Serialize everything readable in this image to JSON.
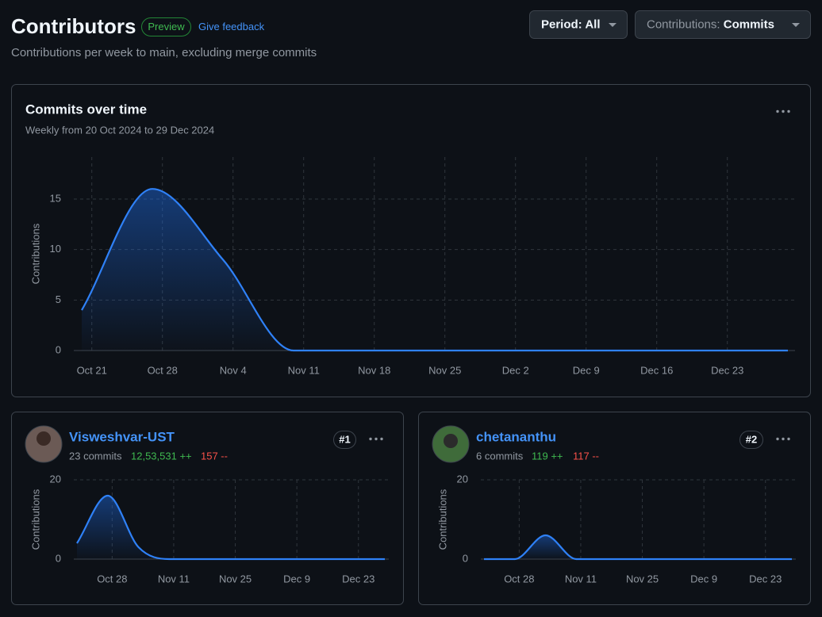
{
  "header": {
    "title": "Contributors",
    "badge": "Preview",
    "feedback": "Give feedback",
    "subtitle": "Contributions per week to main, excluding merge commits",
    "period_label": "Period:",
    "period_value": "All",
    "contributions_label": "Contributions:",
    "contributions_value": "Commits"
  },
  "contributors": [
    {
      "name": "Visweshvar-UST",
      "commits": "23 commits",
      "additions": "12,53,531 ++",
      "deletions": "157 --",
      "rank": "#1"
    },
    {
      "name": "chetananthu",
      "commits": "6 commits",
      "additions": "119 ++",
      "deletions": "117 --",
      "rank": "#2"
    }
  ],
  "chart_data": [
    {
      "type": "area",
      "title": "Commits over time",
      "subtitle": "Weekly from 20 Oct 2024 to 29 Dec 2024",
      "y_label": "Contributions",
      "x": [
        "2024-10-20",
        "2024-10-27",
        "2024-11-03",
        "2024-11-10",
        "2024-11-17",
        "2024-11-24",
        "2024-12-01",
        "2024-12-08",
        "2024-12-15",
        "2024-12-22",
        "2024-12-29"
      ],
      "values": [
        4,
        16,
        9,
        0,
        0,
        0,
        0,
        0,
        0,
        0,
        0
      ],
      "color": "#2f81f7",
      "xlim": [
        "2024-10-20",
        "2024-12-29"
      ],
      "xticks": [
        {
          "value": "2024-10-21",
          "label": "Oct 21"
        },
        {
          "value": "2024-10-28",
          "label": "Oct 28"
        },
        {
          "value": "2024-11-04",
          "label": "Nov 4"
        },
        {
          "value": "2024-11-11",
          "label": "Nov 11"
        },
        {
          "value": "2024-11-18",
          "label": "Nov 18"
        },
        {
          "value": "2024-11-25",
          "label": "Nov 25"
        },
        {
          "value": "2024-12-02",
          "label": "Dec 2"
        },
        {
          "value": "2024-12-09",
          "label": "Dec 9"
        },
        {
          "value": "2024-12-16",
          "label": "Dec 16"
        },
        {
          "value": "2024-12-23",
          "label": "Dec 23"
        }
      ],
      "ylim": [
        0,
        19
      ],
      "yticks": [
        0,
        5,
        10,
        15
      ],
      "grid": true
    },
    {
      "type": "area",
      "y_label": "Contributions",
      "x": [
        "2024-10-20",
        "2024-10-27",
        "2024-11-03",
        "2024-11-10",
        "2024-11-17",
        "2024-11-24",
        "2024-12-01",
        "2024-12-08",
        "2024-12-15",
        "2024-12-22",
        "2024-12-29"
      ],
      "values": [
        4,
        16,
        3,
        0,
        0,
        0,
        0,
        0,
        0,
        0,
        0
      ],
      "color": "#2f81f7",
      "xlim": [
        "2024-10-20",
        "2024-12-29"
      ],
      "xticks": [
        {
          "value": "2024-10-28",
          "label": "Oct 28"
        },
        {
          "value": "2024-11-11",
          "label": "Nov 11"
        },
        {
          "value": "2024-11-25",
          "label": "Nov 25"
        },
        {
          "value": "2024-12-09",
          "label": "Dec 9"
        },
        {
          "value": "2024-12-23",
          "label": "Dec 23"
        }
      ],
      "ylim": [
        0,
        20
      ],
      "yticks": [
        0,
        20
      ],
      "grid": true
    },
    {
      "type": "area",
      "y_label": "Contributions",
      "x": [
        "2024-10-20",
        "2024-10-27",
        "2024-11-03",
        "2024-11-10",
        "2024-11-17",
        "2024-11-24",
        "2024-12-01",
        "2024-12-08",
        "2024-12-15",
        "2024-12-22",
        "2024-12-29"
      ],
      "values": [
        0,
        0,
        6,
        0,
        0,
        0,
        0,
        0,
        0,
        0,
        0
      ],
      "color": "#2f81f7",
      "xlim": [
        "2024-10-20",
        "2024-12-29"
      ],
      "xticks": [
        {
          "value": "2024-10-28",
          "label": "Oct 28"
        },
        {
          "value": "2024-11-11",
          "label": "Nov 11"
        },
        {
          "value": "2024-11-25",
          "label": "Nov 25"
        },
        {
          "value": "2024-12-09",
          "label": "Dec 9"
        },
        {
          "value": "2024-12-23",
          "label": "Dec 23"
        }
      ],
      "ylim": [
        0,
        20
      ],
      "yticks": [
        0,
        20
      ],
      "grid": true
    }
  ]
}
